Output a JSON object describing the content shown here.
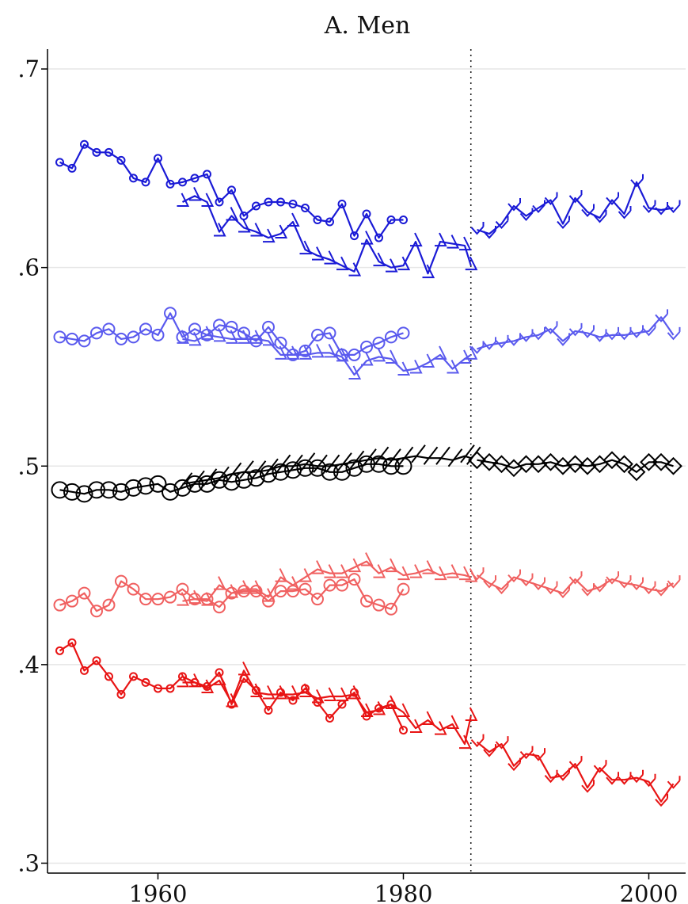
{
  "chart_data": {
    "type": "line",
    "title": "A. Men",
    "xlabel": "",
    "ylabel": "",
    "xlim": [
      1951,
      2003
    ],
    "ylim": [
      0.295,
      0.71
    ],
    "xticks": [
      1960,
      1980,
      2000
    ],
    "xtick_labels": [
      "1960",
      "1980",
      "2000"
    ],
    "yticks": [
      0.3,
      0.4,
      0.5,
      0.6,
      0.7
    ],
    "ytick_labels": [
      ".3",
      ".4",
      ".5",
      ".6",
      ".7"
    ],
    "grid": "horizontal",
    "reference_line_x": 1985.5,
    "series": [
      {
        "color": "#1a1ad6",
        "marker": "circle-small",
        "x": [
          1952,
          1953,
          1954,
          1955,
          1956,
          1957,
          1958,
          1959,
          1960,
          1961,
          1962,
          1963,
          1964,
          1965,
          1966,
          1967,
          1968,
          1969,
          1970,
          1971,
          1972,
          1973,
          1974,
          1975,
          1976,
          1977,
          1978,
          1979,
          1980
        ],
        "y": [
          0.653,
          0.65,
          0.662,
          0.658,
          0.658,
          0.654,
          0.645,
          0.643,
          0.655,
          0.642,
          0.643,
          0.645,
          0.647,
          0.633,
          0.639,
          0.626,
          0.631,
          0.633,
          0.633,
          0.632,
          0.63,
          0.624,
          0.623,
          0.632,
          0.616,
          0.627,
          0.615,
          0.624,
          0.624
        ]
      },
      {
        "color": "#1a1ad6",
        "marker": "triangle",
        "x": [
          1962,
          1963,
          1964,
          1965,
          1966,
          1967,
          1968,
          1969,
          1970,
          1971,
          1972,
          1973,
          1974,
          1975,
          1976,
          1977,
          1978,
          1979,
          1980,
          1981,
          1982,
          1983,
          1984,
          1985,
          1985.5
        ],
        "y": [
          0.633,
          0.636,
          0.633,
          0.618,
          0.626,
          0.62,
          0.618,
          0.615,
          0.617,
          0.623,
          0.609,
          0.606,
          0.604,
          0.601,
          0.598,
          0.614,
          0.603,
          0.6,
          0.601,
          0.613,
          0.597,
          0.613,
          0.612,
          0.611,
          0.601
        ]
      },
      {
        "color": "#1a1ad6",
        "marker": "chevron",
        "x": [
          1986,
          1987,
          1988,
          1989,
          1990,
          1991,
          1992,
          1993,
          1994,
          1995,
          1996,
          1997,
          1998,
          1999,
          2000,
          2001,
          2002
        ],
        "y": [
          0.619,
          0.617,
          0.622,
          0.631,
          0.626,
          0.63,
          0.634,
          0.622,
          0.635,
          0.628,
          0.625,
          0.634,
          0.627,
          0.643,
          0.63,
          0.629,
          0.63
        ]
      },
      {
        "color": "#5a5aee",
        "marker": "circle",
        "x": [
          1952,
          1953,
          1954,
          1955,
          1956,
          1957,
          1958,
          1959,
          1960,
          1961,
          1962,
          1963,
          1964,
          1965,
          1966,
          1967,
          1968,
          1969,
          1970,
          1971,
          1972,
          1973,
          1974,
          1975,
          1976,
          1977,
          1978,
          1979,
          1980
        ],
        "y": [
          0.565,
          0.564,
          0.563,
          0.567,
          0.569,
          0.564,
          0.565,
          0.569,
          0.566,
          0.577,
          0.565,
          0.569,
          0.566,
          0.571,
          0.57,
          0.567,
          0.563,
          0.57,
          0.562,
          0.556,
          0.558,
          0.566,
          0.567,
          0.556,
          0.556,
          0.56,
          0.562,
          0.565,
          0.567
        ]
      },
      {
        "color": "#5a5aee",
        "marker": "triangle",
        "x": [
          1962,
          1963,
          1964,
          1965,
          1966,
          1967,
          1968,
          1969,
          1970,
          1971,
          1972,
          1973,
          1974,
          1975,
          1976,
          1977,
          1978,
          1979,
          1980,
          1981,
          1982,
          1983,
          1984,
          1985,
          1985.5
        ],
        "y": [
          0.564,
          0.563,
          0.566,
          0.565,
          0.564,
          0.564,
          0.564,
          0.563,
          0.556,
          0.556,
          0.556,
          0.557,
          0.557,
          0.555,
          0.546,
          0.553,
          0.555,
          0.554,
          0.548,
          0.549,
          0.552,
          0.556,
          0.549,
          0.554,
          0.556
        ]
      },
      {
        "color": "#5a5aee",
        "marker": "chevron",
        "x": [
          1986,
          1987,
          1988,
          1989,
          1990,
          1991,
          1992,
          1993,
          1994,
          1995,
          1996,
          1997,
          1998,
          1999,
          2000,
          2001,
          2002
        ],
        "y": [
          0.559,
          0.561,
          0.562,
          0.563,
          0.565,
          0.566,
          0.569,
          0.563,
          0.568,
          0.567,
          0.565,
          0.566,
          0.566,
          0.567,
          0.568,
          0.575,
          0.566
        ]
      },
      {
        "color": "#000000",
        "marker": "circle-large",
        "x": [
          1952,
          1953,
          1954,
          1955,
          1956,
          1957,
          1958,
          1959,
          1960,
          1961,
          1962,
          1963,
          1964,
          1965,
          1966,
          1967,
          1968,
          1969,
          1970,
          1971,
          1972,
          1973,
          1974,
          1975,
          1976,
          1977,
          1978,
          1979,
          1980
        ],
        "y": [
          0.488,
          0.487,
          0.486,
          0.488,
          0.488,
          0.487,
          0.489,
          0.49,
          0.491,
          0.487,
          0.489,
          0.491,
          0.491,
          0.493,
          0.492,
          0.493,
          0.494,
          0.496,
          0.497,
          0.498,
          0.499,
          0.499,
          0.497,
          0.497,
          0.499,
          0.501,
          0.501,
          0.5,
          0.5
        ]
      },
      {
        "color": "#000000",
        "marker": "slash",
        "x": [
          1962,
          1963,
          1964,
          1965,
          1966,
          1967,
          1968,
          1969,
          1970,
          1971,
          1972,
          1973,
          1974,
          1975,
          1976,
          1977,
          1978,
          1979,
          1980,
          1981,
          1982,
          1983,
          1984,
          1985,
          1985.5
        ],
        "y": [
          0.491,
          0.492,
          0.493,
          0.494,
          0.496,
          0.497,
          0.497,
          0.498,
          0.5,
          0.5,
          0.501,
          0.5,
          0.5,
          0.501,
          0.502,
          0.503,
          0.504,
          0.503,
          0.504,
          0.505,
          0.504,
          0.504,
          0.503,
          0.505,
          0.504
        ]
      },
      {
        "color": "#000000",
        "marker": "diamond",
        "x": [
          1986,
          1987,
          1988,
          1989,
          1990,
          1991,
          1992,
          1993,
          1994,
          1995,
          1996,
          1997,
          1998,
          1999,
          2000,
          2001,
          2002
        ],
        "y": [
          0.503,
          0.502,
          0.501,
          0.499,
          0.501,
          0.501,
          0.502,
          0.5,
          0.501,
          0.5,
          0.501,
          0.503,
          0.501,
          0.497,
          0.502,
          0.502,
          0.5
        ]
      },
      {
        "color": "#f06060",
        "marker": "circle",
        "x": [
          1952,
          1953,
          1954,
          1955,
          1956,
          1957,
          1958,
          1959,
          1960,
          1961,
          1962,
          1963,
          1964,
          1965,
          1966,
          1967,
          1968,
          1969,
          1970,
          1971,
          1972,
          1973,
          1974,
          1975,
          1976,
          1977,
          1978,
          1979,
          1980
        ],
        "y": [
          0.43,
          0.432,
          0.436,
          0.427,
          0.43,
          0.442,
          0.438,
          0.433,
          0.433,
          0.434,
          0.438,
          0.433,
          0.433,
          0.429,
          0.436,
          0.437,
          0.437,
          0.432,
          0.437,
          0.437,
          0.438,
          0.433,
          0.44,
          0.44,
          0.443,
          0.432,
          0.43,
          0.428,
          0.438
        ]
      },
      {
        "color": "#f06060",
        "marker": "triangle",
        "x": [
          1962,
          1963,
          1964,
          1965,
          1966,
          1967,
          1968,
          1969,
          1970,
          1971,
          1972,
          1973,
          1974,
          1975,
          1976,
          1977,
          1978,
          1979,
          1980,
          1981,
          1982,
          1983,
          1984,
          1985,
          1985.5
        ],
        "y": [
          0.432,
          0.433,
          0.432,
          0.44,
          0.436,
          0.438,
          0.438,
          0.434,
          0.444,
          0.44,
          0.444,
          0.448,
          0.446,
          0.446,
          0.449,
          0.452,
          0.446,
          0.449,
          0.445,
          0.446,
          0.448,
          0.445,
          0.446,
          0.445,
          0.444
        ]
      },
      {
        "color": "#f06060",
        "marker": "chevron",
        "x": [
          1986,
          1987,
          1988,
          1989,
          1990,
          1991,
          1992,
          1993,
          1994,
          1995,
          1996,
          1997,
          1998,
          1999,
          2000,
          2001,
          2002
        ],
        "y": [
          0.445,
          0.441,
          0.438,
          0.444,
          0.442,
          0.44,
          0.438,
          0.436,
          0.443,
          0.437,
          0.439,
          0.443,
          0.441,
          0.44,
          0.438,
          0.437,
          0.441
        ]
      },
      {
        "color": "#e81414",
        "marker": "circle-small",
        "x": [
          1952,
          1953,
          1954,
          1955,
          1956,
          1957,
          1958,
          1959,
          1960,
          1961,
          1962,
          1963,
          1964,
          1965,
          1966,
          1967,
          1968,
          1969,
          1970,
          1971,
          1972,
          1973,
          1974,
          1975,
          1976,
          1977,
          1978,
          1979,
          1980
        ],
        "y": [
          0.407,
          0.411,
          0.397,
          0.402,
          0.394,
          0.385,
          0.394,
          0.391,
          0.388,
          0.388,
          0.394,
          0.391,
          0.389,
          0.396,
          0.38,
          0.393,
          0.387,
          0.377,
          0.386,
          0.382,
          0.388,
          0.381,
          0.373,
          0.38,
          0.386,
          0.374,
          0.378,
          0.38,
          0.367
        ]
      },
      {
        "color": "#e81414",
        "marker": "triangle",
        "x": [
          1962,
          1963,
          1964,
          1965,
          1966,
          1967,
          1968,
          1969,
          1970,
          1971,
          1972,
          1973,
          1974,
          1975,
          1976,
          1977,
          1978,
          1979,
          1980,
          1981,
          1982,
          1983,
          1984,
          1985,
          1985.5
        ],
        "y": [
          0.391,
          0.391,
          0.388,
          0.392,
          0.381,
          0.397,
          0.386,
          0.385,
          0.385,
          0.385,
          0.386,
          0.383,
          0.384,
          0.384,
          0.385,
          0.376,
          0.377,
          0.38,
          0.376,
          0.368,
          0.372,
          0.367,
          0.37,
          0.36,
          0.374
        ]
      },
      {
        "color": "#e81414",
        "marker": "chevron",
        "x": [
          1986,
          1987,
          1988,
          1989,
          1990,
          1991,
          1992,
          1993,
          1994,
          1995,
          1996,
          1997,
          1998,
          1999,
          2000,
          2001,
          2002
        ],
        "y": [
          0.361,
          0.356,
          0.36,
          0.349,
          0.355,
          0.354,
          0.343,
          0.344,
          0.35,
          0.338,
          0.348,
          0.342,
          0.342,
          0.343,
          0.341,
          0.331,
          0.34
        ]
      }
    ]
  }
}
